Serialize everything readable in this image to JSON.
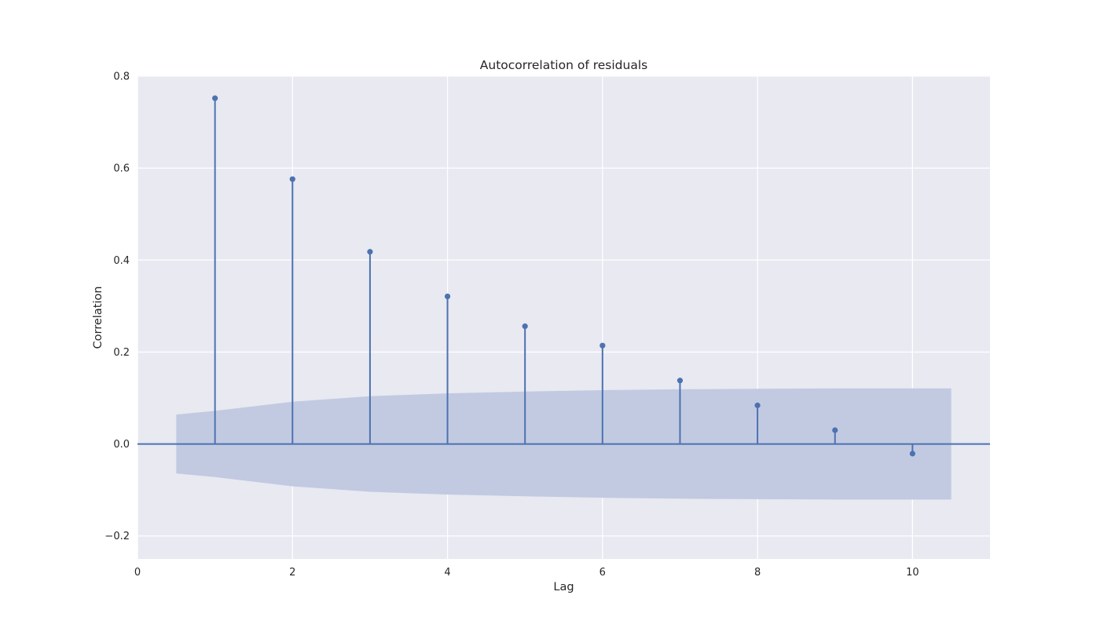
{
  "chart_data": {
    "type": "stem",
    "title": "Autocorrelation of residuals",
    "xlabel": "Lag",
    "ylabel": "Correlation",
    "xlim": [
      0,
      11
    ],
    "ylim": [
      -0.25,
      0.8
    ],
    "xticks": [
      0,
      2,
      4,
      6,
      8,
      10
    ],
    "yticks": [
      -0.2,
      0.0,
      0.2,
      0.4,
      0.6,
      0.8
    ],
    "grid": true,
    "colors": {
      "background": "#e8e9f1",
      "grid": "#ffffff",
      "stem": "#4c72b0",
      "band": "#c2cae2"
    },
    "series": [
      {
        "x": [
          1,
          2,
          3,
          4,
          5,
          6,
          7,
          8,
          9,
          10
        ],
        "values": [
          0.752,
          0.576,
          0.418,
          0.321,
          0.256,
          0.214,
          0.138,
          0.084,
          0.03,
          -0.021
        ]
      }
    ],
    "confidence_band": {
      "x": [
        0.5,
        1,
        2,
        3,
        4,
        5,
        6,
        7,
        8,
        9,
        10,
        10.5
      ],
      "upper": [
        0.064,
        0.072,
        0.092,
        0.104,
        0.11,
        0.114,
        0.117,
        0.119,
        0.12,
        0.121,
        0.121,
        0.121
      ],
      "lower": [
        -0.064,
        -0.072,
        -0.092,
        -0.104,
        -0.11,
        -0.114,
        -0.117,
        -0.119,
        -0.12,
        -0.121,
        -0.121,
        -0.121
      ]
    },
    "zero_line": 0
  }
}
